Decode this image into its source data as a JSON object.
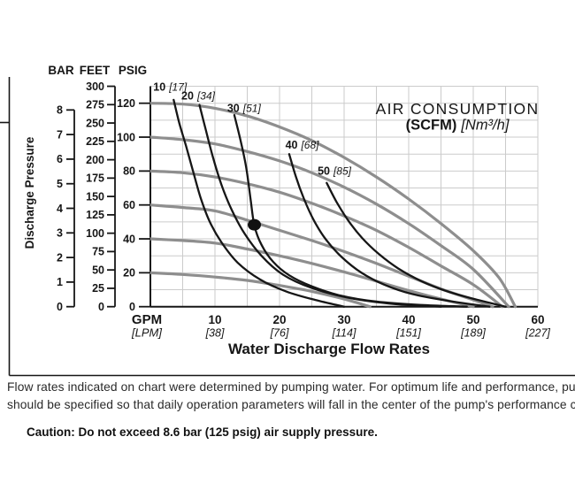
{
  "notes": {
    "line1": "Flow rates indicated on chart were determined by pumping water. For optimum life and performance, pumps",
    "line2": "should be specified so that daily operation parameters will fall in the center of the pump's performance curve.",
    "caution": "Caution: Do not exceed 8.6 bar (125 psig) air supply pressure."
  },
  "chart_data": {
    "type": "line",
    "title": "AIR CONSUMPTION",
    "subtitle_bold": "(SCFM)",
    "subtitle_italic": "[Nm³/h]",
    "x_axis_title": "Water Discharge Flow Rates",
    "y_axis_title": "Discharge Pressure",
    "x_origin_label": "GPM",
    "x_origin_sublabel": "[LPM]",
    "x_range_gpm": [
      0,
      60
    ],
    "y_range_psig": [
      0,
      130
    ],
    "grid_step": {
      "x_gpm": 5,
      "y_psig": 10
    },
    "x_ticks": [
      {
        "gpm": 10,
        "lpm": "[38]"
      },
      {
        "gpm": 20,
        "lpm": "[76]"
      },
      {
        "gpm": 30,
        "lpm": "[114]"
      },
      {
        "gpm": 40,
        "lpm": "[151]"
      },
      {
        "gpm": 50,
        "lpm": "[189]"
      },
      {
        "gpm": 60,
        "lpm": "[227]"
      }
    ],
    "pressure_axes": {
      "bar": {
        "label": "BAR",
        "ticks": [
          0,
          1,
          2,
          3,
          4,
          5,
          6,
          7,
          8
        ],
        "psi_per_unit": 14.5038
      },
      "feet": {
        "label": "FEET",
        "ticks": [
          0,
          25,
          50,
          75,
          100,
          125,
          150,
          175,
          200,
          225,
          250,
          275,
          300
        ],
        "psi_per_unit": 0.43333
      },
      "psig": {
        "label": "PSIG",
        "ticks": [
          0,
          20,
          40,
          60,
          80,
          100,
          120
        ],
        "psi_per_unit": 1
      }
    },
    "pump_curves_by_air_supply_psig": [
      {
        "start_psig": 120,
        "points_gpm_psig": [
          [
            0,
            120
          ],
          [
            5,
            119.5
          ],
          [
            10,
            117
          ],
          [
            15,
            112.5
          ],
          [
            20,
            106
          ],
          [
            25,
            98
          ],
          [
            30,
            88
          ],
          [
            35,
            76.5
          ],
          [
            40,
            63.5
          ],
          [
            45,
            49
          ],
          [
            50,
            33
          ],
          [
            54,
            17
          ],
          [
            56.5,
            0
          ]
        ]
      },
      {
        "start_psig": 100,
        "points_gpm_psig": [
          [
            0,
            100
          ],
          [
            5,
            98.5
          ],
          [
            10,
            96
          ],
          [
            15,
            91.5
          ],
          [
            20,
            86
          ],
          [
            25,
            79
          ],
          [
            30,
            70.5
          ],
          [
            35,
            60.5
          ],
          [
            40,
            49
          ],
          [
            45,
            36
          ],
          [
            50,
            22
          ],
          [
            55.5,
            0
          ]
        ]
      },
      {
        "start_psig": 80,
        "points_gpm_psig": [
          [
            0,
            80
          ],
          [
            5,
            79
          ],
          [
            10,
            76.5
          ],
          [
            15,
            72.5
          ],
          [
            20,
            67.5
          ],
          [
            25,
            61
          ],
          [
            30,
            53.5
          ],
          [
            35,
            45
          ],
          [
            40,
            35
          ],
          [
            45,
            24
          ],
          [
            50,
            13
          ],
          [
            54.5,
            0
          ]
        ]
      },
      {
        "start_psig": 60,
        "points_gpm_psig": [
          [
            0,
            60
          ],
          [
            5,
            58.5
          ],
          [
            10,
            56.5
          ],
          [
            15,
            51
          ],
          [
            20,
            45
          ],
          [
            25,
            39
          ],
          [
            30,
            32.5
          ],
          [
            35,
            25.5
          ],
          [
            40,
            18
          ],
          [
            45,
            10.5
          ],
          [
            50,
            4
          ],
          [
            53,
            0
          ]
        ]
      },
      {
        "start_psig": 40,
        "points_gpm_psig": [
          [
            0,
            40
          ],
          [
            5,
            39
          ],
          [
            10,
            37.5
          ],
          [
            15,
            34
          ],
          [
            20,
            30
          ],
          [
            25,
            25.5
          ],
          [
            30,
            20.5
          ],
          [
            35,
            15
          ],
          [
            40,
            9.5
          ],
          [
            45,
            4.5
          ],
          [
            50,
            0
          ]
        ]
      },
      {
        "start_psig": 20,
        "points_gpm_psig": [
          [
            0,
            20
          ],
          [
            5,
            19
          ],
          [
            10,
            17.5
          ],
          [
            15,
            15.5
          ],
          [
            20,
            12.5
          ],
          [
            25,
            9
          ],
          [
            30,
            4.5
          ],
          [
            34,
            0
          ]
        ]
      }
    ],
    "air_consumption_curves": [
      {
        "scfm": "10",
        "nm3h": "[17]",
        "label_pos_gpm_psig": [
          0.45,
          127.3
        ],
        "points_gpm_psig": [
          [
            3.6,
            122
          ],
          [
            4.5,
            108
          ],
          [
            5.5,
            95
          ],
          [
            6.6,
            80
          ],
          [
            7.8,
            64
          ],
          [
            9.2,
            50
          ],
          [
            11,
            38
          ],
          [
            13.5,
            26
          ],
          [
            17,
            16
          ],
          [
            21,
            9
          ],
          [
            25.5,
            4
          ],
          [
            30,
            0
          ]
        ]
      },
      {
        "scfm": "20",
        "nm3h": "[34]",
        "label_pos_gpm_psig": [
          4.8,
          122.3
        ],
        "points_gpm_psig": [
          [
            7.6,
            119
          ],
          [
            8.6,
            104
          ],
          [
            9.7,
            88
          ],
          [
            11,
            72
          ],
          [
            12.6,
            57
          ],
          [
            14.6,
            43
          ],
          [
            17.2,
            30
          ],
          [
            20.5,
            19
          ],
          [
            25,
            11
          ],
          [
            31,
            5
          ],
          [
            38,
            1.5
          ],
          [
            45,
            0
          ]
        ]
      },
      {
        "scfm": "30",
        "nm3h": "[51]",
        "label_pos_gpm_psig": [
          11.9,
          114.8
        ],
        "points_gpm_psig": [
          [
            13,
            113
          ],
          [
            13.9,
            99
          ],
          [
            14.8,
            83
          ],
          [
            15.5,
            64
          ],
          [
            16.1,
            48
          ],
          [
            17.2,
            36.5
          ],
          [
            19,
            26.5
          ],
          [
            21.5,
            18.5
          ],
          [
            25,
            12
          ],
          [
            29.5,
            6.5
          ],
          [
            35,
            3
          ],
          [
            42,
            1
          ],
          [
            49,
            0
          ]
        ]
      },
      {
        "scfm": "40",
        "nm3h": "[68]",
        "label_pos_gpm_psig": [
          20.9,
          93.2
        ],
        "points_gpm_psig": [
          [
            21.5,
            90
          ],
          [
            22.5,
            77
          ],
          [
            23.8,
            63.5
          ],
          [
            25.3,
            51
          ],
          [
            27.2,
            39.5
          ],
          [
            29.7,
            29
          ],
          [
            32.7,
            20
          ],
          [
            36.2,
            13
          ],
          [
            40.5,
            7.5
          ],
          [
            46,
            3.5
          ],
          [
            52.5,
            0
          ]
        ]
      },
      {
        "scfm": "50",
        "nm3h": "[85]",
        "label_pos_gpm_psig": [
          25.9,
          77.9
        ],
        "points_gpm_psig": [
          [
            27.3,
            73
          ],
          [
            28.8,
            62
          ],
          [
            30.6,
            51
          ],
          [
            32.8,
            40.5
          ],
          [
            35.4,
            31
          ],
          [
            38.4,
            22.5
          ],
          [
            42,
            15
          ],
          [
            46,
            9
          ],
          [
            50.2,
            4.5
          ],
          [
            55,
            0
          ]
        ]
      }
    ],
    "operating_point_gpm_psig": [
      16.1,
      48.3
    ],
    "colors": {
      "pump_curve": "#8e8e8e",
      "air_curve": "#161616",
      "grid": "#cbcbcb",
      "axis": "#161616"
    }
  }
}
